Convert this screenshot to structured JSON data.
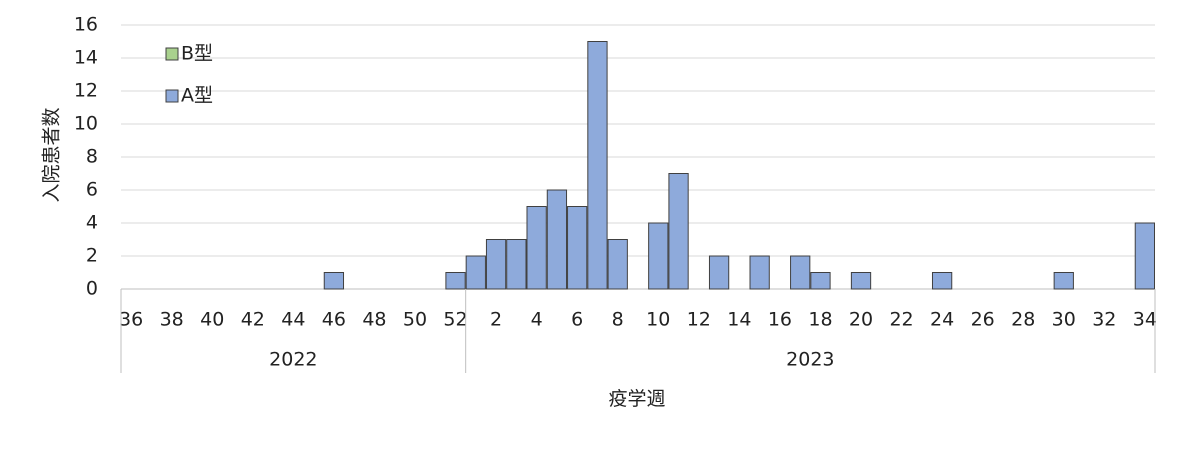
{
  "chart_data": {
    "type": "bar",
    "xlabel": "疫学週",
    "ylabel": "入院患者数",
    "ylim": [
      0,
      16
    ],
    "yticks": [
      0,
      2,
      4,
      6,
      8,
      10,
      12,
      14,
      16
    ],
    "grid": true,
    "legend_position": "top-left",
    "years": [
      {
        "label": "2022",
        "weeks": [
          36,
          37,
          38,
          39,
          40,
          41,
          42,
          43,
          44,
          45,
          46,
          47,
          48,
          49,
          50,
          51,
          52
        ]
      },
      {
        "label": "2023",
        "weeks": [
          1,
          2,
          3,
          4,
          5,
          6,
          7,
          8,
          9,
          10,
          11,
          12,
          13,
          14,
          15,
          16,
          17,
          18,
          19,
          20,
          21,
          22,
          23,
          24,
          25,
          26,
          27,
          28,
          29,
          30,
          31,
          32,
          33,
          34
        ]
      }
    ],
    "x_tick_labels": {
      "2022": [
        "36",
        "38",
        "40",
        "42",
        "44",
        "46",
        "48",
        "50",
        "52"
      ],
      "2023": [
        "2",
        "4",
        "6",
        "8",
        "10",
        "12",
        "14",
        "16",
        "18",
        "20",
        "22",
        "24",
        "26",
        "28",
        "30",
        "32",
        "34"
      ]
    },
    "series": [
      {
        "name": "B型",
        "color": "#a9d18e",
        "values_2022": [
          0,
          0,
          0,
          0,
          0,
          0,
          0,
          0,
          0,
          0,
          0,
          0,
          0,
          0,
          0,
          0,
          0
        ],
        "values_2023": [
          0,
          0,
          0,
          0,
          0,
          0,
          0,
          0,
          0,
          0,
          0,
          0,
          0,
          0,
          0,
          0,
          0,
          0,
          0,
          0,
          0,
          0,
          0,
          0,
          0,
          0,
          0,
          0,
          0,
          0,
          0,
          0,
          0,
          0
        ]
      },
      {
        "name": "A型",
        "color": "#8eaadb",
        "values_2022": [
          0,
          0,
          0,
          0,
          0,
          0,
          0,
          0,
          0,
          0,
          1,
          0,
          0,
          0,
          0,
          0,
          1
        ],
        "values_2023": [
          2,
          3,
          3,
          5,
          6,
          5,
          15,
          3,
          0,
          4,
          7,
          0,
          2,
          0,
          2,
          0,
          2,
          1,
          0,
          1,
          0,
          0,
          0,
          1,
          0,
          0,
          0,
          0,
          0,
          1,
          0,
          0,
          0,
          4
        ]
      }
    ]
  }
}
